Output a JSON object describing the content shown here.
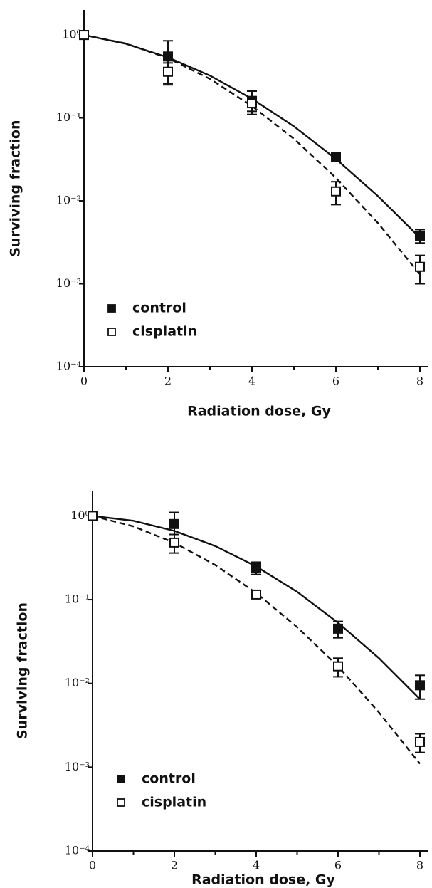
{
  "chart_data": [
    {
      "type": "scatter",
      "log_y": true,
      "legend": "lower left",
      "xlabel": "Radiation dose, Gy",
      "ylabel": "Surviving fraction",
      "x": [
        0,
        2,
        4,
        6,
        8
      ],
      "xlim": [
        0,
        8.2
      ],
      "xticks": [
        0,
        2,
        4,
        6,
        8
      ],
      "xminor": [
        1,
        3,
        5,
        7
      ],
      "ylim": [
        0.0001,
        2
      ],
      "yticks": [
        {
          "value": 1,
          "label": "10⁰"
        },
        {
          "value": 0.1,
          "label": "10⁻¹"
        },
        {
          "value": 0.01,
          "label": "10⁻²"
        },
        {
          "value": 0.001,
          "label": "10⁻³"
        },
        {
          "value": 0.0001,
          "label": "10⁻⁴"
        }
      ],
      "series": [
        {
          "name": "control",
          "color": "#111111",
          "marker": "filled",
          "line": "solid",
          "values": [
            1,
            0.55,
            0.16,
            0.034,
            0.0038
          ],
          "errors": [
            0.05,
            0.3,
            0.05,
            0.004,
            0.0007
          ],
          "fit": {
            "x": [
              0,
              1,
              2,
              3,
              4,
              5,
              6,
              7,
              8
            ],
            "values": [
              1,
              0.782,
              0.536,
              0.323,
              0.17,
              0.079,
              0.032,
              0.0114,
              0.0036
            ]
          }
        },
        {
          "name": "cisplatin",
          "color": "#111111",
          "marker": "open",
          "line": "dashed",
          "values": [
            1,
            0.36,
            0.15,
            0.013,
            0.0016
          ],
          "errors": [
            0.05,
            0.1,
            0.03,
            0.004,
            0.0006
          ],
          "fit": {
            "x": [
              0,
              1,
              2,
              3,
              4,
              5,
              6,
              7,
              8
            ],
            "values": [
              1,
              0.788,
              0.525,
              0.295,
              0.139,
              0.056,
              0.0189,
              0.0054,
              0.0013
            ]
          }
        }
      ]
    },
    {
      "type": "scatter",
      "log_y": true,
      "legend": "lower left",
      "xlabel": "Radiation dose, Gy",
      "ylabel": "Surviving fraction",
      "x": [
        0,
        2,
        4,
        6,
        8
      ],
      "xlim": [
        0,
        8.2
      ],
      "xticks": [
        0,
        2,
        4,
        6,
        8
      ],
      "xminor": [
        1,
        3,
        5,
        7
      ],
      "ylim": [
        0.0001,
        2
      ],
      "yticks": [
        {
          "value": 1,
          "label": "10⁰"
        },
        {
          "value": 0.1,
          "label": "10⁻¹"
        },
        {
          "value": 0.01,
          "label": "10⁻²"
        },
        {
          "value": 0.001,
          "label": "10⁻³"
        },
        {
          "value": 0.0001,
          "label": "10⁻⁴"
        }
      ],
      "series": [
        {
          "name": "control",
          "color": "#111111",
          "marker": "filled",
          "line": "solid",
          "values": [
            1,
            0.8,
            0.24,
            0.045,
            0.0095
          ],
          "errors": [
            0.05,
            0.3,
            0.04,
            0.01,
            0.003
          ],
          "fit": {
            "x": [
              0,
              1,
              2,
              3,
              4,
              5,
              6,
              7,
              8
            ],
            "values": [
              1,
              0.873,
              0.662,
              0.436,
              0.249,
              0.124,
              0.053,
              0.02,
              0.0065
            ]
          }
        },
        {
          "name": "cisplatin",
          "color": "#111111",
          "marker": "open",
          "line": "dashed",
          "values": [
            1,
            0.48,
            0.115,
            0.016,
            0.002
          ],
          "errors": [
            0.05,
            0.12,
            0.01,
            0.004,
            0.0005
          ],
          "fit": {
            "x": [
              0,
              1,
              2,
              3,
              4,
              5,
              6,
              7,
              8
            ],
            "values": [
              1,
              0.749,
              0.477,
              0.259,
              0.12,
              0.047,
              0.016,
              0.0045,
              0.0011
            ]
          }
        }
      ]
    }
  ]
}
